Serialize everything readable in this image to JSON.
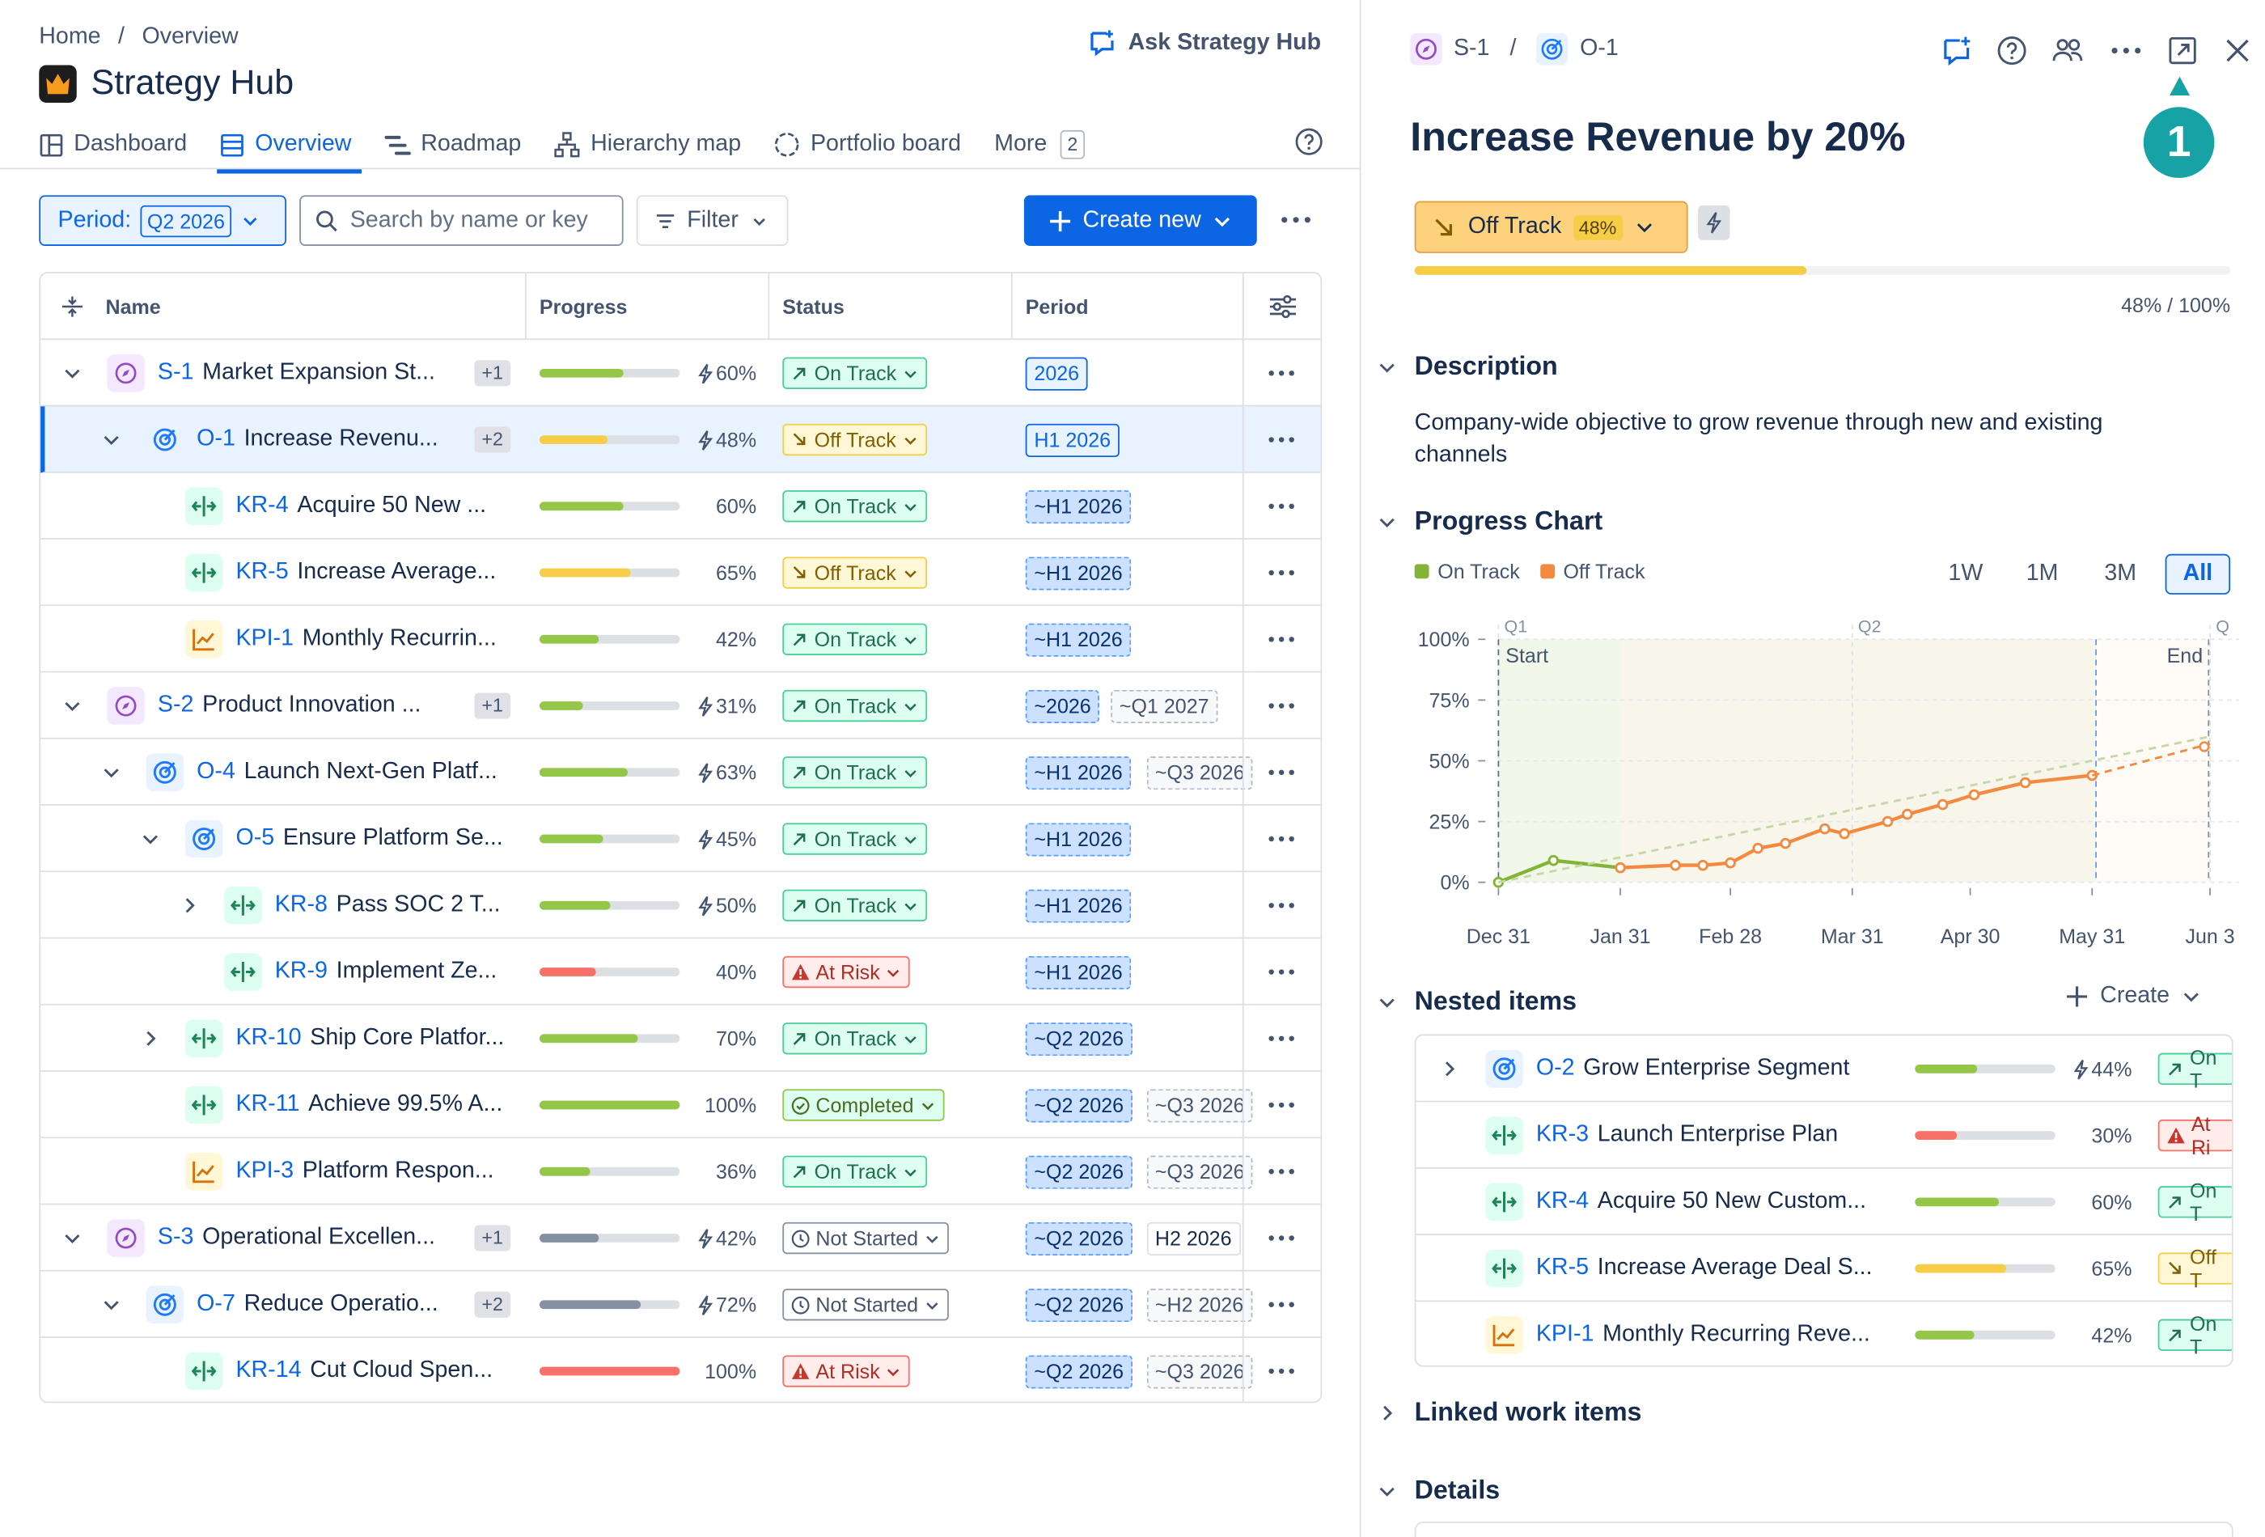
{
  "breadcrumb": {
    "home": "Home",
    "sep": "/",
    "current": "Overview"
  },
  "app": {
    "title": "Strategy Hub",
    "ask": "Ask Strategy Hub"
  },
  "tabs": [
    {
      "label": "Dashboard",
      "icon": "dashboard-icon"
    },
    {
      "label": "Overview",
      "icon": "list-icon",
      "active": true
    },
    {
      "label": "Roadmap",
      "icon": "roadmap-icon"
    },
    {
      "label": "Hierarchy map",
      "icon": "hierarchy-icon"
    },
    {
      "label": "Portfolio board",
      "icon": "portfolio-icon"
    },
    {
      "label": "More",
      "icon": "",
      "count": "2"
    }
  ],
  "toolbar": {
    "period_label": "Period:",
    "period_value": "Q2 2026",
    "search_placeholder": "Search by name or key",
    "filter": "Filter",
    "create": "Create new"
  },
  "table": {
    "headers": {
      "name": "Name",
      "progress": "Progress",
      "status": "Status",
      "period": "Period"
    },
    "rows": [
      {
        "key": "S-1",
        "name": "Market Expansion St...",
        "type": "s",
        "level": 0,
        "chevron": "down",
        "extra": "+1",
        "progress": 60,
        "bolt": true,
        "color": "#94c748",
        "status": "On Track",
        "st": "on",
        "periods": [
          {
            "t": "2026",
            "k": "fixed"
          }
        ]
      },
      {
        "key": "O-1",
        "name": "Increase Revenu...",
        "type": "o",
        "level": 1,
        "chevron": "down",
        "extra": "+2",
        "progress": 48,
        "bolt": true,
        "color": "#f5cd47",
        "status": "Off Track",
        "st": "off",
        "periods": [
          {
            "t": "H1 2026",
            "k": "fixed"
          }
        ],
        "selected": true
      },
      {
        "key": "KR-4",
        "name": "Acquire 50 New ...",
        "type": "kr",
        "level": 2,
        "chevron": "",
        "extra": "",
        "progress": 60,
        "bolt": false,
        "color": "#94c748",
        "status": "On Track",
        "st": "on",
        "periods": [
          {
            "t": "~H1 2026",
            "k": "est"
          }
        ]
      },
      {
        "key": "KR-5",
        "name": "Increase Average...",
        "type": "kr",
        "level": 2,
        "chevron": "",
        "extra": "",
        "progress": 65,
        "bolt": false,
        "color": "#f5cd47",
        "status": "Off Track",
        "st": "off",
        "periods": [
          {
            "t": "~H1 2026",
            "k": "est"
          }
        ]
      },
      {
        "key": "KPI-1",
        "name": "Monthly Recurrin...",
        "type": "kpi",
        "level": 2,
        "chevron": "",
        "extra": "",
        "progress": 42,
        "bolt": false,
        "color": "#94c748",
        "status": "On Track",
        "st": "on",
        "periods": [
          {
            "t": "~H1 2026",
            "k": "est"
          }
        ]
      },
      {
        "key": "S-2",
        "name": "Product Innovation ...",
        "type": "s",
        "level": 0,
        "chevron": "down",
        "extra": "+1",
        "progress": 31,
        "bolt": true,
        "color": "#94c748",
        "status": "On Track",
        "st": "on",
        "periods": [
          {
            "t": "~2026",
            "k": "est"
          },
          {
            "t": "~Q1 2027",
            "k": "est2"
          }
        ]
      },
      {
        "key": "O-4",
        "name": "Launch Next-Gen Platf...",
        "type": "o",
        "level": 1,
        "chevron": "down",
        "extra": "",
        "progress": 63,
        "bolt": true,
        "color": "#94c748",
        "status": "On Track",
        "st": "on",
        "periods": [
          {
            "t": "~H1 2026",
            "k": "est"
          },
          {
            "t": "~Q3 2026",
            "k": "est2"
          }
        ]
      },
      {
        "key": "O-5",
        "name": "Ensure Platform Se...",
        "type": "o",
        "level": 2,
        "chevron": "down",
        "extra": "",
        "progress": 45,
        "bolt": true,
        "color": "#94c748",
        "status": "On Track",
        "st": "on",
        "periods": [
          {
            "t": "~H1 2026",
            "k": "est"
          }
        ]
      },
      {
        "key": "KR-8",
        "name": "Pass SOC 2 T...",
        "type": "kr",
        "level": 3,
        "chevron": "right",
        "extra": "",
        "progress": 50,
        "bolt": true,
        "color": "#94c748",
        "status": "On Track",
        "st": "on",
        "periods": [
          {
            "t": "~H1 2026",
            "k": "est"
          }
        ]
      },
      {
        "key": "KR-9",
        "name": "Implement Ze...",
        "type": "kr",
        "level": 3,
        "chevron": "",
        "extra": "",
        "progress": 40,
        "bolt": false,
        "color": "#f87168",
        "status": "At Risk",
        "st": "risk",
        "periods": [
          {
            "t": "~H1 2026",
            "k": "est"
          }
        ]
      },
      {
        "key": "KR-10",
        "name": "Ship Core Platfor...",
        "type": "kr",
        "level": 2,
        "chevron": "right",
        "extra": "",
        "progress": 70,
        "bolt": false,
        "color": "#94c748",
        "status": "On Track",
        "st": "on",
        "periods": [
          {
            "t": "~Q2 2026",
            "k": "est"
          }
        ]
      },
      {
        "key": "KR-11",
        "name": "Achieve 99.5% A...",
        "type": "kr",
        "level": 2,
        "chevron": "",
        "extra": "",
        "progress": 100,
        "bolt": false,
        "color": "#94c748",
        "status": "Completed",
        "st": "done",
        "periods": [
          {
            "t": "~Q2 2026",
            "k": "est"
          },
          {
            "t": "~Q3 2026",
            "k": "est2"
          }
        ]
      },
      {
        "key": "KPI-3",
        "name": "Platform Respon...",
        "type": "kpi",
        "level": 2,
        "chevron": "",
        "extra": "",
        "progress": 36,
        "bolt": false,
        "color": "#94c748",
        "status": "On Track",
        "st": "on",
        "periods": [
          {
            "t": "~Q2 2026",
            "k": "est"
          },
          {
            "t": "~Q3 2026",
            "k": "est2"
          }
        ]
      },
      {
        "key": "S-3",
        "name": "Operational Excellen...",
        "type": "s",
        "level": 0,
        "chevron": "down",
        "extra": "+1",
        "progress": 42,
        "bolt": true,
        "color": "#8590a2",
        "status": "Not Started",
        "st": "ns",
        "periods": [
          {
            "t": "~Q2 2026",
            "k": "est"
          },
          {
            "t": "H2 2026",
            "k": "fixg"
          }
        ]
      },
      {
        "key": "O-7",
        "name": "Reduce Operatio...",
        "type": "o",
        "level": 1,
        "chevron": "down",
        "extra": "+2",
        "progress": 72,
        "bolt": true,
        "color": "#8590a2",
        "status": "Not Started",
        "st": "ns",
        "periods": [
          {
            "t": "~Q2 2026",
            "k": "est"
          },
          {
            "t": "~H2 2026",
            "k": "est2"
          }
        ]
      },
      {
        "key": "KR-14",
        "name": "Cut Cloud Spen...",
        "type": "kr",
        "level": 2,
        "chevron": "",
        "extra": "",
        "progress": 100,
        "bolt": false,
        "color": "#f87168",
        "status": "At Risk",
        "st": "risk",
        "periods": [
          {
            "t": "~Q2 2026",
            "k": "est"
          },
          {
            "t": "~Q3 2026",
            "k": "est2"
          }
        ]
      }
    ]
  },
  "panel": {
    "crumb1": "S-1",
    "crumb_sep": "/",
    "crumb2": "O-1",
    "title": "Increase Revenue by 20%",
    "status": "Off Track",
    "status_pct": "48%",
    "progress": 48,
    "progress_text": "48% / 100%",
    "callout": "1",
    "description_title": "Description",
    "description": "Company-wide objective to grow revenue through new and existing channels",
    "chart_title": "Progress Chart",
    "legend": [
      {
        "label": "On Track",
        "color": "#82b536"
      },
      {
        "label": "Off Track",
        "color": "#f38a3f"
      }
    ],
    "ranges": [
      "1W",
      "1M",
      "3M",
      "All"
    ],
    "active_range": "All",
    "nested_title": "Nested items",
    "nested_create": "Create",
    "nested": [
      {
        "key": "O-2",
        "name": "Grow Enterprise Segment",
        "type": "o",
        "chevron": true,
        "progress": 44,
        "bolt": true,
        "color": "#94c748",
        "status": "On T",
        "st": "on"
      },
      {
        "key": "KR-3",
        "name": "Launch Enterprise Plan",
        "type": "kr",
        "chevron": false,
        "progress": 30,
        "bolt": false,
        "color": "#f87168",
        "status": "At Ri",
        "st": "risk"
      },
      {
        "key": "KR-4",
        "name": "Acquire 50 New Custom...",
        "type": "kr",
        "chevron": false,
        "progress": 60,
        "bolt": false,
        "color": "#94c748",
        "status": "On T",
        "st": "on"
      },
      {
        "key": "KR-5",
        "name": "Increase Average Deal S...",
        "type": "kr",
        "chevron": false,
        "progress": 65,
        "bolt": false,
        "color": "#f5cd47",
        "status": "Off T",
        "st": "off"
      },
      {
        "key": "KPI-1",
        "name": "Monthly Recurring Reve...",
        "type": "kpi",
        "chevron": false,
        "progress": 42,
        "bolt": false,
        "color": "#94c748",
        "status": "On T",
        "st": "on"
      }
    ],
    "linked_title": "Linked work items",
    "details_title": "Details"
  },
  "chart_data": {
    "type": "line",
    "title": "Progress Chart",
    "xlabel": "",
    "ylabel": "",
    "x_ticks": [
      "Dec 31",
      "Jan 31",
      "Feb 28",
      "Mar 31",
      "Apr 30",
      "May 31",
      "Jun 3"
    ],
    "y_ticks": [
      "100%",
      "75%",
      "50%",
      "25%",
      "0%"
    ],
    "ylim": [
      0,
      100
    ],
    "quarter_labels": [
      "Q1",
      "Q2",
      "Q"
    ],
    "markers": [
      "Start",
      "End"
    ],
    "series": [
      {
        "name": "On Track",
        "color": "#82b536",
        "x": [
          "2025-12-31",
          "2026-01-14",
          "2026-01-31"
        ],
        "y": [
          0,
          9,
          6
        ]
      },
      {
        "name": "Off Track",
        "color": "#f38a3f",
        "x": [
          "2026-01-31",
          "2026-02-14",
          "2026-02-21",
          "2026-02-28",
          "2026-03-07",
          "2026-03-14",
          "2026-03-24",
          "2026-03-29",
          "2026-04-09",
          "2026-04-14",
          "2026-04-23",
          "2026-05-01",
          "2026-05-14",
          "2026-05-31"
        ],
        "y": [
          6,
          7,
          7,
          8,
          14,
          16,
          22,
          20,
          25,
          28,
          32,
          36,
          41,
          44
        ]
      },
      {
        "name": "Off Track projection",
        "color": "#f38a3f",
        "dashed": true,
        "x": [
          "2026-05-31",
          "2026-06-30"
        ],
        "y": [
          44,
          57
        ]
      },
      {
        "name": "Target",
        "color": "#c5d8a8",
        "dashed": true,
        "x": [
          "2025-12-31",
          "2026-06-30"
        ],
        "y": [
          0,
          60
        ]
      }
    ]
  }
}
